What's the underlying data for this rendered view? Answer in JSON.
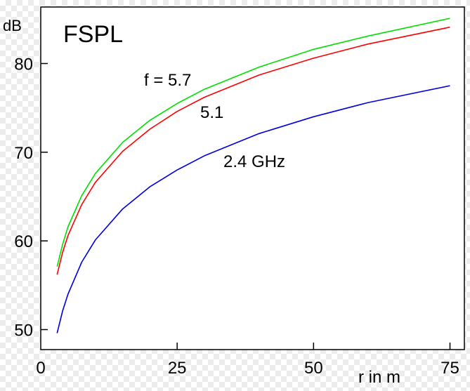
{
  "chart_data": {
    "type": "line",
    "title": "FSPL",
    "ylabel": "dB",
    "xlabel": "r in m",
    "xlim": [
      0,
      75
    ],
    "ylim": [
      47.5,
      88
    ],
    "x_ticks": [
      0,
      25,
      50,
      75
    ],
    "y_ticks": [
      50,
      60,
      70,
      80
    ],
    "grid": false,
    "series": [
      {
        "name": "f = 5.7",
        "color": "#00e000",
        "x": [
          3,
          4,
          5,
          7.5,
          10,
          15,
          20,
          25,
          30,
          40,
          50,
          60,
          75
        ],
        "y": [
          57.1,
          59.6,
          61.6,
          65.1,
          67.6,
          71.1,
          73.6,
          75.5,
          77.1,
          79.6,
          81.6,
          83.1,
          85.1
        ]
      },
      {
        "name": "5.1",
        "color": "#ff0000",
        "x": [
          3,
          4,
          5,
          7.5,
          10,
          15,
          20,
          25,
          30,
          40,
          50,
          60,
          75
        ],
        "y": [
          56.2,
          58.7,
          60.6,
          64.1,
          66.6,
          70.1,
          72.6,
          74.6,
          76.2,
          78.7,
          80.6,
          82.2,
          84.1
        ]
      },
      {
        "name": "2.4 GHz",
        "color": "#0000dd",
        "x": [
          3,
          4,
          5,
          7.5,
          10,
          15,
          20,
          25,
          30,
          40,
          50,
          60,
          75
        ],
        "y": [
          49.6,
          52.1,
          54.0,
          57.6,
          60.1,
          63.6,
          66.1,
          68.0,
          69.6,
          72.1,
          74.0,
          75.6,
          77.5
        ]
      }
    ]
  }
}
